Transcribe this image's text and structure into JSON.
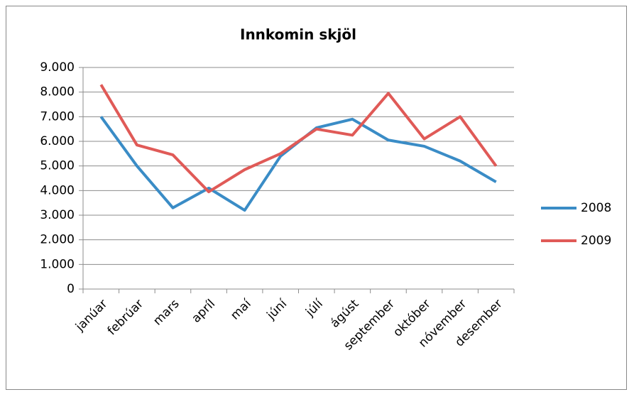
{
  "chart_data": {
    "type": "line",
    "title": "Innkomin skjöl",
    "categories": [
      "janúar",
      "febrúar",
      "mars",
      "apríl",
      "maí",
      "júní",
      "júlí",
      "ágúst",
      "september",
      "október",
      "nóvember",
      "desember"
    ],
    "series": [
      {
        "name": "2008",
        "color": "#3a8cc6",
        "values": [
          7000,
          5000,
          3300,
          4100,
          3200,
          5400,
          6550,
          6900,
          6050,
          5800,
          5200,
          4350
        ]
      },
      {
        "name": "2009",
        "color": "#e05a57",
        "values": [
          8300,
          5850,
          5450,
          3950,
          4850,
          5500,
          6500,
          6250,
          7950,
          6100,
          7000,
          5000
        ]
      }
    ],
    "ylim": [
      0,
      9000
    ],
    "yticks": [
      0,
      {
        "value": 1000,
        "label": "1.000"
      },
      {
        "value": 2000,
        "label": "2.000"
      },
      {
        "value": 3000,
        "label": "3.000"
      },
      {
        "value": 4000,
        "label": "4.000"
      },
      {
        "value": 5000,
        "label": "5.000"
      },
      {
        "value": 6000,
        "label": "6.000"
      },
      {
        "value": 7000,
        "label": "7.000"
      },
      {
        "value": 8000,
        "label": "8.000"
      },
      {
        "value": 9000,
        "label": "9.000"
      }
    ],
    "grid": true,
    "legend": "right"
  }
}
